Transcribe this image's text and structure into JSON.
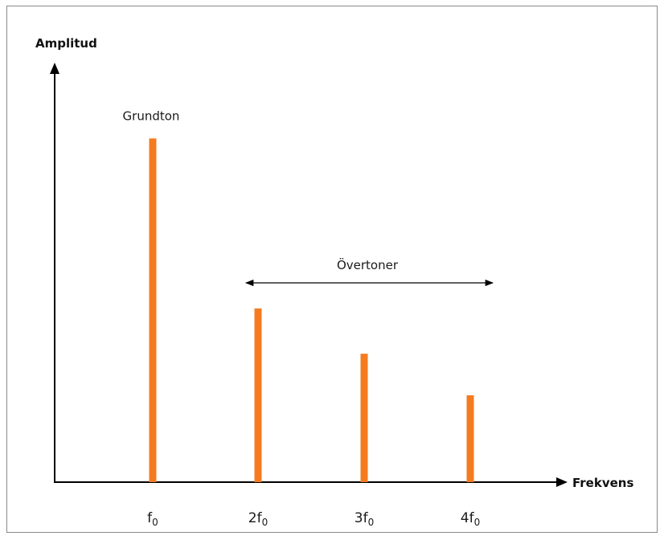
{
  "chart_data": {
    "type": "bar",
    "ylabel": "Amplitud",
    "xlabel": "Frekvens",
    "categories": [
      {
        "base": "f",
        "prefix": "",
        "sub": "0"
      },
      {
        "base": "f",
        "prefix": "2",
        "sub": "0"
      },
      {
        "base": "f",
        "prefix": "3",
        "sub": "0"
      },
      {
        "base": "f",
        "prefix": "4",
        "sub": "0"
      }
    ],
    "values": [
      0.91,
      0.46,
      0.34,
      0.23
    ],
    "ylim": [
      0,
      1
    ],
    "bar_color": "#f47b20",
    "axis_color": "#000000",
    "annotations": {
      "fundamental": "Grundton",
      "overtones": "Övertoner"
    },
    "grid": false
  }
}
